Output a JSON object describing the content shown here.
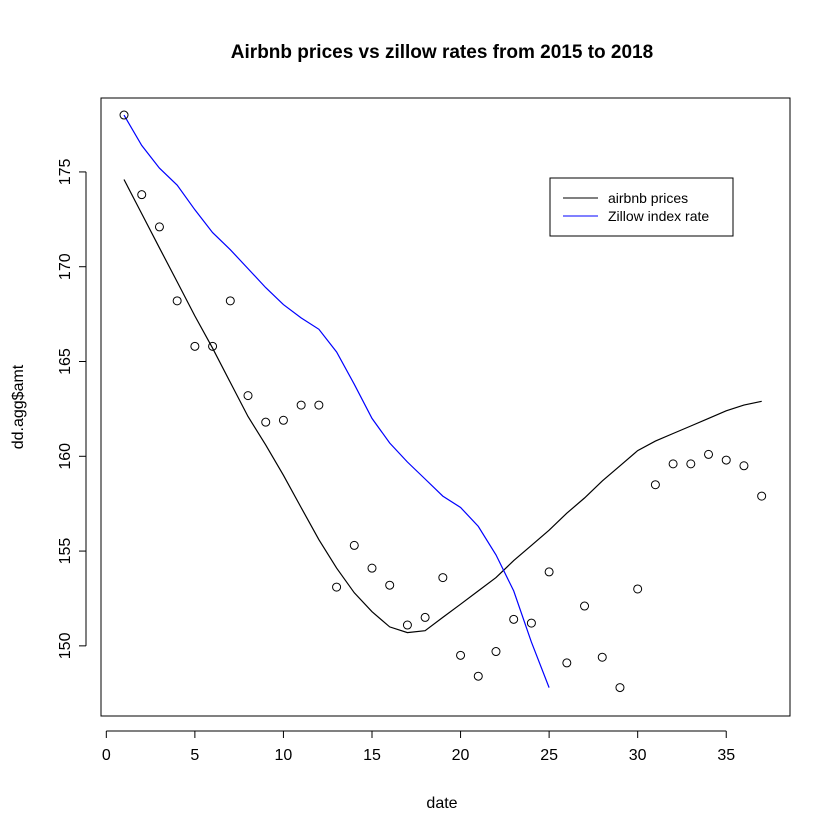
{
  "chart_data": {
    "type": "scatter",
    "title": "Airbnb prices vs zillow rates from 2015 to 2018",
    "xlabel": "date",
    "ylabel": "dd.agg$amt",
    "xlim": [
      -0.3,
      38.6
    ],
    "ylim": [
      146.3,
      178.9
    ],
    "xticks": [
      0,
      5,
      10,
      15,
      20,
      25,
      30,
      35
    ],
    "yticks": [
      150,
      155,
      160,
      165,
      170,
      175
    ],
    "legend_position": "top-right",
    "points": {
      "x": [
        1,
        2,
        3,
        4,
        5,
        6,
        7,
        8,
        9,
        10,
        11,
        12,
        13,
        14,
        15,
        16,
        17,
        18,
        19,
        20,
        21,
        22,
        23,
        24,
        25,
        26,
        27,
        28,
        29,
        30,
        31,
        32,
        33,
        34,
        35,
        36,
        37
      ],
      "y": [
        178.0,
        173.8,
        172.1,
        168.2,
        165.8,
        165.8,
        168.2,
        163.2,
        161.8,
        161.9,
        162.7,
        162.7,
        153.1,
        155.3,
        154.1,
        153.2,
        151.1,
        151.5,
        153.6,
        149.5,
        148.4,
        149.7,
        151.4,
        151.2,
        153.9,
        149.1,
        152.1,
        149.4,
        147.8,
        153.0,
        158.5,
        159.6,
        159.6,
        160.1,
        159.8,
        159.5,
        157.9
      ]
    },
    "series": [
      {
        "name": "airbnb prices",
        "color": "#000000",
        "x": [
          1,
          2,
          3,
          4,
          5,
          6,
          7,
          8,
          9,
          10,
          11,
          12,
          13,
          14,
          15,
          16,
          17,
          18,
          19,
          20,
          21,
          22,
          23,
          24,
          25,
          26,
          27,
          28,
          29,
          30,
          31,
          32,
          33,
          34,
          35,
          36,
          37
        ],
        "y": [
          174.6,
          172.8,
          171.0,
          169.2,
          167.4,
          165.7,
          163.9,
          162.1,
          160.6,
          159.0,
          157.3,
          155.6,
          154.1,
          152.8,
          151.8,
          151.0,
          150.7,
          150.8,
          151.5,
          152.2,
          152.9,
          153.6,
          154.5,
          155.3,
          156.1,
          157.0,
          157.8,
          158.7,
          159.5,
          160.3,
          160.8,
          161.2,
          161.6,
          162.0,
          162.4,
          162.7,
          162.9
        ]
      },
      {
        "name": "Zillow index rate",
        "color": "#0000ff",
        "x": [
          1,
          2,
          3,
          4,
          5,
          6,
          7,
          8,
          9,
          10,
          11,
          12,
          13,
          14,
          15,
          16,
          17,
          18,
          19,
          20,
          21,
          22,
          23,
          24,
          25
        ],
        "y": [
          178.0,
          176.4,
          175.2,
          174.3,
          173.0,
          171.8,
          170.9,
          169.9,
          168.9,
          168.0,
          167.3,
          166.7,
          165.5,
          163.8,
          162.0,
          160.7,
          159.7,
          158.8,
          157.9,
          157.3,
          156.3,
          154.8,
          152.9,
          150.2,
          147.8
        ]
      }
    ]
  }
}
